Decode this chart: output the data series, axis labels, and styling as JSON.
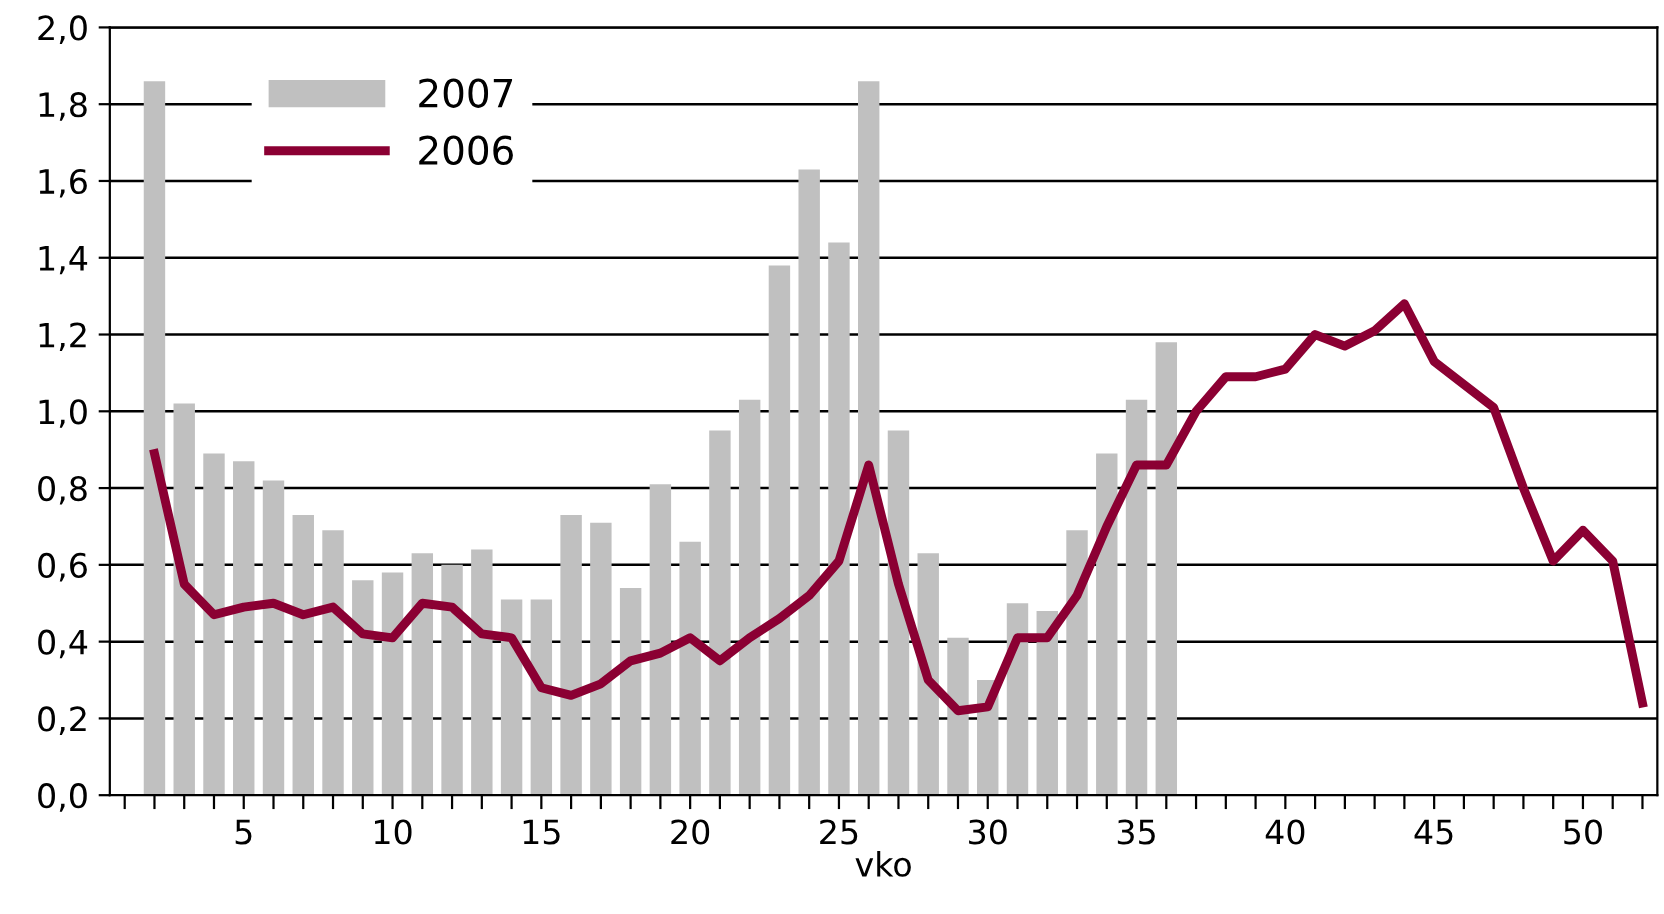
{
  "chart_data": {
    "type": "bar",
    "xlabel": "vko",
    "series": [
      {
        "name": "2007",
        "color": "#c0c0c0",
        "x": [
          2,
          3,
          4,
          5,
          6,
          7,
          8,
          9,
          10,
          11,
          12,
          13,
          14,
          15,
          16,
          17,
          18,
          19,
          20,
          21,
          22,
          23,
          24,
          25,
          26,
          27,
          28,
          29,
          30,
          31,
          32,
          33,
          34,
          35,
          36
        ],
        "values": [
          1.86,
          1.02,
          0.89,
          0.87,
          0.82,
          0.73,
          0.69,
          0.56,
          0.58,
          0.63,
          0.6,
          0.64,
          0.51,
          0.51,
          0.73,
          0.71,
          0.54,
          0.81,
          0.66,
          0.95,
          1.03,
          1.38,
          1.63,
          1.44,
          1.86,
          0.95,
          0.63,
          0.41,
          0.3,
          0.5,
          0.48,
          0.69,
          0.89,
          1.03,
          1.18
        ]
      },
      {
        "name": "2006",
        "type": "line",
        "color": "#8b0033",
        "x": [
          2,
          3,
          4,
          5,
          6,
          7,
          8,
          9,
          10,
          11,
          12,
          13,
          14,
          15,
          16,
          17,
          18,
          19,
          20,
          21,
          22,
          23,
          24,
          25,
          26,
          27,
          28,
          29,
          30,
          31,
          32,
          33,
          34,
          35,
          36,
          37,
          38,
          39,
          40,
          41,
          42,
          43,
          44,
          45,
          46,
          47,
          48,
          49,
          50,
          51,
          52
        ],
        "values": [
          0.89,
          0.55,
          0.47,
          0.49,
          0.5,
          0.47,
          0.49,
          0.42,
          0.41,
          0.5,
          0.49,
          0.42,
          0.41,
          0.28,
          0.26,
          0.29,
          0.35,
          0.37,
          0.41,
          0.35,
          0.41,
          0.46,
          0.52,
          0.61,
          0.86,
          0.55,
          0.3,
          0.22,
          0.23,
          0.41,
          0.41,
          0.52,
          0.7,
          0.86,
          0.86,
          1.0,
          1.09,
          1.09,
          1.11,
          1.2,
          1.17,
          1.21,
          1.28,
          1.13,
          1.07,
          1.01,
          0.8,
          0.61,
          0.69,
          0.61,
          0.24
        ]
      }
    ],
    "xlim": [
      0.5,
      52.5
    ],
    "xticks": [
      {
        "value": 1,
        "label": null
      },
      {
        "value": 2,
        "label": null
      },
      {
        "value": 3,
        "label": null
      },
      {
        "value": 4,
        "label": null
      },
      5,
      {
        "value": 6,
        "label": null
      },
      {
        "value": 7,
        "label": null
      },
      {
        "value": 8,
        "label": null
      },
      {
        "value": 9,
        "label": null
      },
      10,
      {
        "value": 11,
        "label": null
      },
      {
        "value": 12,
        "label": null
      },
      {
        "value": 13,
        "label": null
      },
      {
        "value": 14,
        "label": null
      },
      15,
      {
        "value": 16,
        "label": null
      },
      {
        "value": 17,
        "label": null
      },
      {
        "value": 18,
        "label": null
      },
      {
        "value": 19,
        "label": null
      },
      20,
      {
        "value": 21,
        "label": null
      },
      {
        "value": 22,
        "label": null
      },
      {
        "value": 23,
        "label": null
      },
      {
        "value": 24,
        "label": null
      },
      25,
      {
        "value": 26,
        "label": null
      },
      {
        "value": 27,
        "label": null
      },
      {
        "value": 28,
        "label": null
      },
      {
        "value": 29,
        "label": null
      },
      30,
      {
        "value": 31,
        "label": null
      },
      {
        "value": 32,
        "label": null
      },
      {
        "value": 33,
        "label": null
      },
      {
        "value": 34,
        "label": null
      },
      35,
      {
        "value": 36,
        "label": null
      },
      {
        "value": 37,
        "label": null
      },
      {
        "value": 38,
        "label": null
      },
      {
        "value": 39,
        "label": null
      },
      40,
      {
        "value": 41,
        "label": null
      },
      {
        "value": 42,
        "label": null
      },
      {
        "value": 43,
        "label": null
      },
      {
        "value": 44,
        "label": null
      },
      45,
      {
        "value": 46,
        "label": null
      },
      {
        "value": 47,
        "label": null
      },
      {
        "value": 48,
        "label": null
      },
      {
        "value": 49,
        "label": null
      },
      50,
      {
        "value": 51,
        "label": null
      },
      {
        "value": 52,
        "label": null
      }
    ],
    "ylim": [
      0,
      2.0
    ],
    "yticks": [
      {
        "value": 0,
        "label": "0,0"
      },
      {
        "value": 0.2,
        "label": "0,2"
      },
      {
        "value": 0.4,
        "label": "0,4"
      },
      {
        "value": 0.6,
        "label": "0,6"
      },
      {
        "value": 0.8,
        "label": "0,8"
      },
      {
        "value": 1.0,
        "label": "1,0"
      },
      {
        "value": 1.2,
        "label": "1,2"
      },
      {
        "value": 1.4,
        "label": "1,4"
      },
      {
        "value": 1.6,
        "label": "1,6"
      },
      {
        "value": 1.8,
        "label": "1,8"
      },
      {
        "value": 2.0,
        "label": "2,0"
      }
    ],
    "grid": "y",
    "legend": "top left",
    "marker": "none",
    "line_style": "solid"
  }
}
